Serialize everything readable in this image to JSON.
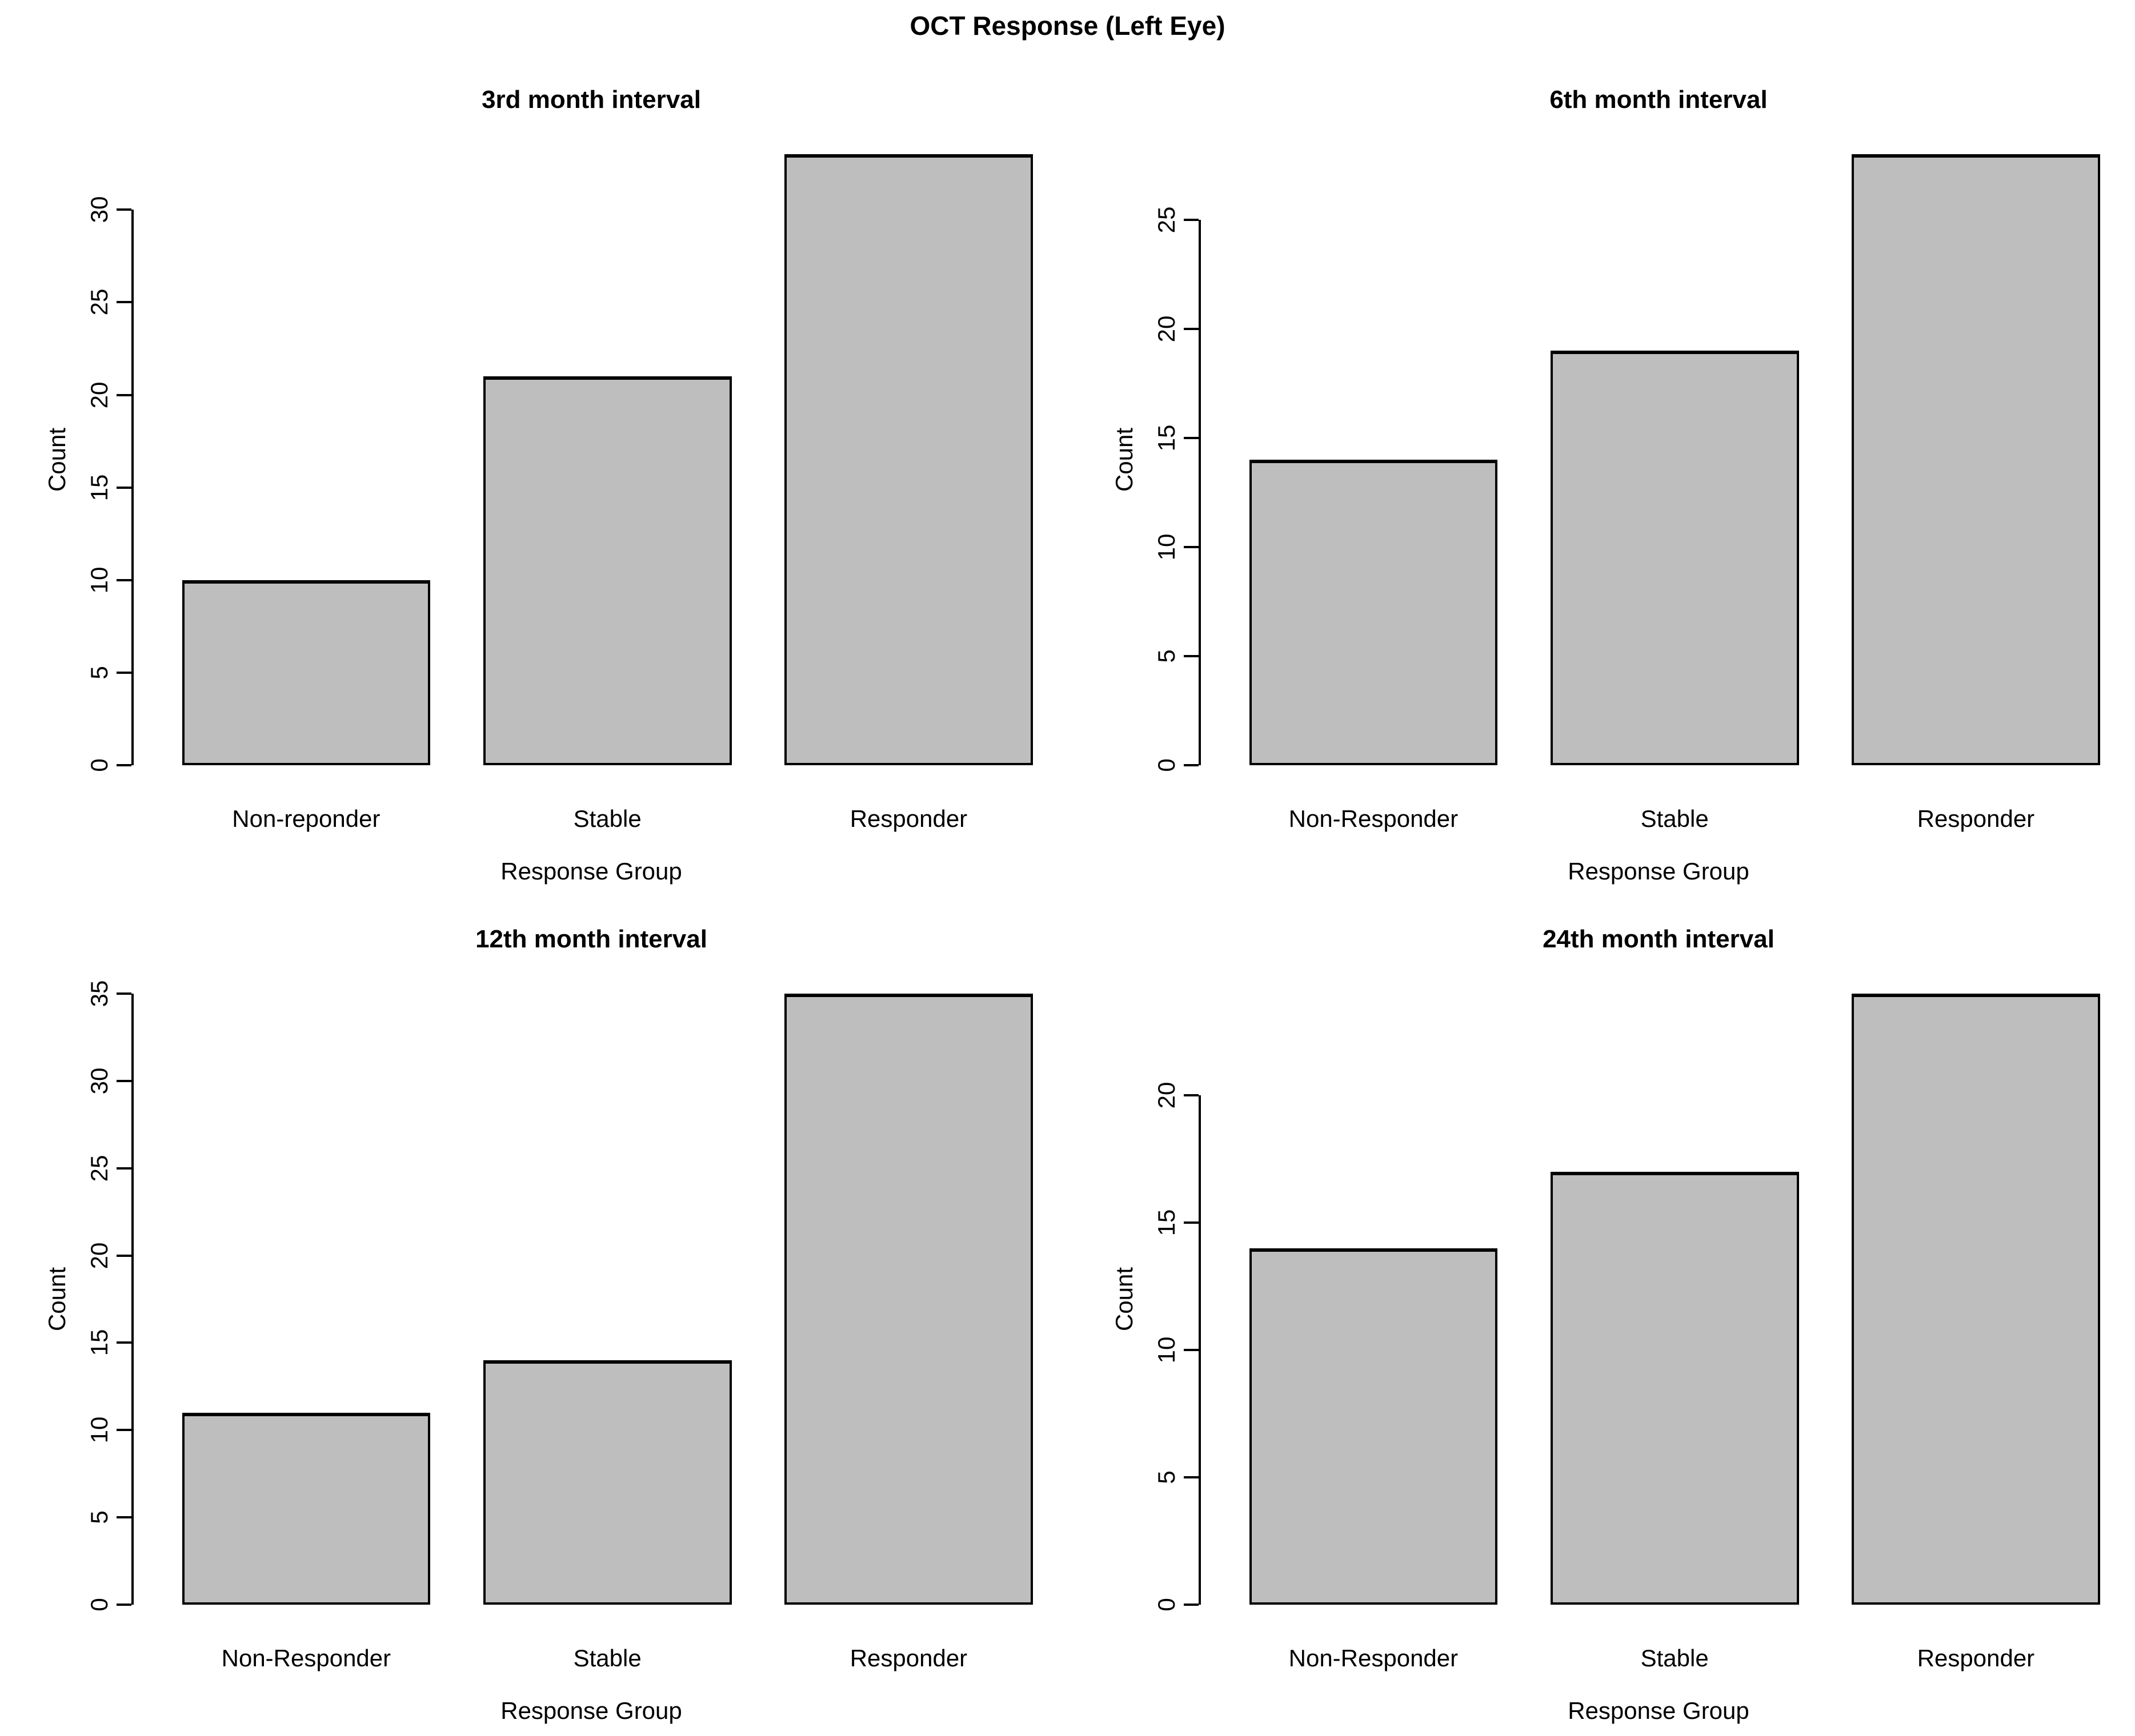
{
  "page_title": "OCT Response (Left Eye)",
  "colors": {
    "bar_fill": "#BEBEBE",
    "bar_border": "#000000",
    "axis": "#000000",
    "background": "#FFFFFF",
    "text": "#000000"
  },
  "chart_data": [
    {
      "type": "bar",
      "title": "3rd month interval",
      "categories": [
        "Non-reponder",
        "Stable",
        "Responder"
      ],
      "values": [
        10,
        21,
        33
      ],
      "xlabel": "Response Group",
      "ylabel": "Count",
      "yticks": [
        0,
        5,
        10,
        15,
        20,
        25,
        30
      ],
      "ylim": [
        0,
        33
      ],
      "grid": false,
      "legend": false
    },
    {
      "type": "bar",
      "title": "6th month interval",
      "categories": [
        "Non-Responder",
        "Stable",
        "Responder"
      ],
      "values": [
        14,
        19,
        28
      ],
      "xlabel": "Response Group",
      "ylabel": "Count",
      "yticks": [
        0,
        5,
        10,
        15,
        20,
        25
      ],
      "ylim": [
        0,
        28
      ],
      "grid": false,
      "legend": false
    },
    {
      "type": "bar",
      "title": "12th month interval",
      "categories": [
        "Non-Responder",
        "Stable",
        "Responder"
      ],
      "values": [
        11,
        14,
        35
      ],
      "xlabel": "Response Group",
      "ylabel": "Count",
      "yticks": [
        0,
        5,
        10,
        15,
        20,
        25,
        30,
        35
      ],
      "ylim": [
        0,
        35
      ],
      "grid": false,
      "legend": false
    },
    {
      "type": "bar",
      "title": "24th month interval",
      "categories": [
        "Non-Responder",
        "Stable",
        "Responder"
      ],
      "values": [
        14,
        17,
        24
      ],
      "xlabel": "Response Group",
      "ylabel": "Count",
      "yticks": [
        0,
        5,
        10,
        15,
        20
      ],
      "ylim": [
        0,
        24
      ],
      "grid": false,
      "legend": false
    }
  ]
}
